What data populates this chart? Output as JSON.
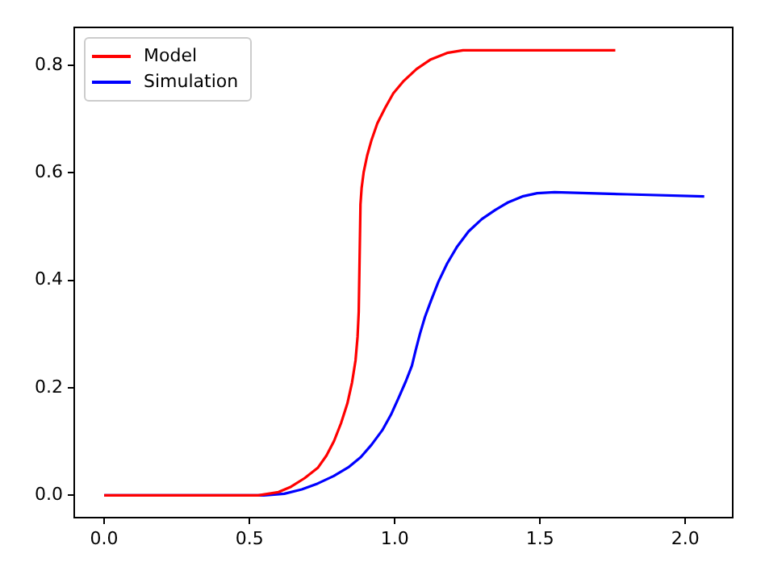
{
  "chart_data": {
    "type": "line",
    "legend": "top left",
    "grid": false,
    "marker": "none",
    "line_style": "solid",
    "xlim": [
      -0.103,
      2.163
    ],
    "ylim": [
      -0.0415,
      0.8705
    ],
    "xticks": [
      {
        "value": 0,
        "label": "0.0"
      },
      {
        "value": 0.5,
        "label": "0.5"
      },
      {
        "value": 1,
        "label": "1.0"
      },
      {
        "value": 1.5,
        "label": "1.5"
      },
      {
        "value": 2,
        "label": "2.0"
      }
    ],
    "yticks": [
      {
        "value": 0,
        "label": "0.0"
      },
      {
        "value": 0.2,
        "label": "0.2"
      },
      {
        "value": 0.4,
        "label": "0.4"
      },
      {
        "value": 0.6,
        "label": "0.6"
      },
      {
        "value": 0.8,
        "label": "0.8"
      }
    ],
    "series": [
      {
        "name": "Model",
        "color": "#ff0000",
        "x": [
          0,
          0.53,
          0.6,
          0.643,
          0.69,
          0.735,
          0.765,
          0.791,
          0.815,
          0.837,
          0.853,
          0.865,
          0.872,
          0.876,
          0.882,
          0.886,
          0.893,
          0.905,
          0.92,
          0.94,
          0.967,
          0.995,
          1.031,
          1.075,
          1.124,
          1.18,
          1.235,
          1.759
        ],
        "values": [
          0,
          0,
          0.006,
          0.016,
          0.032,
          0.051,
          0.074,
          0.101,
          0.134,
          0.171,
          0.21,
          0.251,
          0.295,
          0.341,
          0.541,
          0.572,
          0.601,
          0.632,
          0.661,
          0.692,
          0.721,
          0.748,
          0.771,
          0.793,
          0.811,
          0.823,
          0.828,
          0.828
        ]
      },
      {
        "name": "Simulation",
        "color": "#0000ff",
        "x": [
          0,
          0.55,
          0.62,
          0.68,
          0.735,
          0.79,
          0.84,
          0.883,
          0.92,
          0.957,
          0.987,
          1.013,
          1.038,
          1.059,
          1.072,
          1.087,
          1.104,
          1.124,
          1.15,
          1.18,
          1.215,
          1.254,
          1.3,
          1.346,
          1.39,
          1.439,
          1.49,
          1.55,
          1.8,
          2.065
        ],
        "values": [
          0,
          0,
          0.003,
          0.011,
          0.022,
          0.036,
          0.052,
          0.071,
          0.094,
          0.121,
          0.15,
          0.181,
          0.212,
          0.241,
          0.27,
          0.301,
          0.332,
          0.361,
          0.397,
          0.431,
          0.463,
          0.491,
          0.514,
          0.531,
          0.545,
          0.556,
          0.562,
          0.564,
          0.56,
          0.556
        ]
      }
    ]
  }
}
